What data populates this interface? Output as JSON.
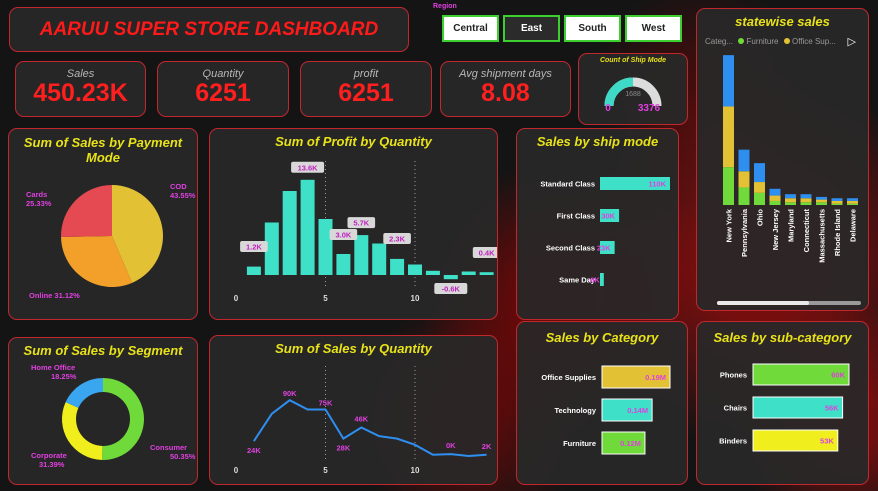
{
  "header": {
    "title": "AARUU SUPER STORE DASHBOARD"
  },
  "region_filter": {
    "label": "Region",
    "options": [
      "Central",
      "East",
      "South",
      "West"
    ],
    "selected": "East"
  },
  "kpis": [
    {
      "label": "Sales",
      "value": "450.23K"
    },
    {
      "label": "Quantity",
      "value": "6251"
    },
    {
      "label": "profit",
      "value": "6251"
    },
    {
      "label": "Avg shipment days",
      "value": "8.08"
    }
  ],
  "gauge": {
    "title": "Count of Ship Mode",
    "min": "0",
    "max": "3376",
    "center": "1688",
    "value_fraction": 0.5,
    "accent": "#3fd9c8"
  },
  "payment": {
    "title": "Sum of Sales by Payment Mode",
    "slices": [
      {
        "name": "COD",
        "pct": "43.55%",
        "value": 43.55,
        "color": "#e2c234"
      },
      {
        "name": "Online",
        "pct": "31.12%",
        "value": 31.12,
        "color": "#f2a02a"
      },
      {
        "name": "Cards",
        "pct": "25.33%",
        "value": 25.33,
        "color": "#e54952"
      }
    ]
  },
  "segment": {
    "title": "Sum of Sales by Segment",
    "slices": [
      {
        "name": "Consumer",
        "pct": "50.35%",
        "value": 50.35,
        "color": "#6fda3a"
      },
      {
        "name": "Corporate",
        "pct": "31.39%",
        "value": 31.39,
        "color": "#f0ee1c"
      },
      {
        "name": "Home Office",
        "pct": "18.25%",
        "value": 18.25,
        "color": "#3aa6f0"
      }
    ]
  },
  "statewise": {
    "title": "statewise sales",
    "legend": [
      {
        "label": "Categ...",
        "color": ""
      },
      {
        "label": "Furniture",
        "color": "#6fda3a"
      },
      {
        "label": "Office Sup...",
        "color": "#e2c234"
      }
    ]
  },
  "chart_data": [
    {
      "type": "bar",
      "title": "Sum of Profit by Quantity",
      "x": [
        1,
        2,
        3,
        4,
        5,
        6,
        7,
        8,
        9,
        10,
        11,
        12,
        13,
        14
      ],
      "values": [
        1.2,
        7.5,
        12.0,
        13.6,
        8.0,
        3.0,
        5.7,
        4.5,
        2.3,
        1.5,
        0.6,
        -0.6,
        0.5,
        0.4
      ],
      "data_labels": [
        {
          "x": 1,
          "text": "1.2K"
        },
        {
          "x": 4,
          "text": "13.6K"
        },
        {
          "x": 6,
          "text": "3.0K"
        },
        {
          "x": 7,
          "text": "5.7K"
        },
        {
          "x": 9,
          "text": "2.3K"
        },
        {
          "x": 12,
          "text": "-0.6K"
        },
        {
          "x": 14,
          "text": "0.4K"
        }
      ],
      "xticks": [
        0,
        5,
        10
      ],
      "color": "#3fe0c8"
    },
    {
      "type": "line",
      "title": "Sum of Sales by Quantity",
      "x": [
        1,
        2,
        3,
        4,
        5,
        6,
        7,
        8,
        9,
        10,
        11,
        12,
        13,
        14
      ],
      "values": [
        24,
        68,
        90,
        75,
        75,
        28,
        46,
        32,
        28,
        18,
        2,
        3,
        0,
        2
      ],
      "data_labels": [
        {
          "x": 1,
          "text": "24K"
        },
        {
          "x": 3,
          "text": "90K"
        },
        {
          "x": 5,
          "text": "75K"
        },
        {
          "x": 6,
          "text": "28K"
        },
        {
          "x": 7,
          "text": "46K"
        },
        {
          "x": 12,
          "text": "0K"
        },
        {
          "x": 14,
          "text": "2K"
        }
      ],
      "xticks": [
        0,
        5,
        10
      ],
      "color": "#2e8ff0"
    },
    {
      "type": "bar",
      "title": "Sales by ship mode",
      "orientation": "horizontal",
      "categories": [
        "Standard Class",
        "First Class",
        "Second Class",
        "Same Day"
      ],
      "values": [
        110,
        30,
        23,
        6
      ],
      "labels": [
        "110K",
        "30K",
        "23K",
        "6K"
      ],
      "color": "#3fe0c8"
    },
    {
      "type": "bar",
      "title": "Sales by Category",
      "orientation": "horizontal",
      "categories": [
        "Office Supplies",
        "Technology",
        "Furniture"
      ],
      "values": [
        0.19,
        0.14,
        0.12
      ],
      "labels": [
        "0.19M",
        "0.14M",
        "0.12M"
      ],
      "colors": [
        "#e2c234",
        "#3fe0c8",
        "#6fda3a"
      ]
    },
    {
      "type": "bar",
      "title": "Sales by sub-category",
      "orientation": "horizontal",
      "categories": [
        "Phones",
        "Chairs",
        "Binders"
      ],
      "values": [
        60,
        56,
        53
      ],
      "labels": [
        "60K",
        "56K",
        "53K"
      ],
      "colors": [
        "#6fda3a",
        "#3fe0c8",
        "#f0ee1c"
      ]
    },
    {
      "type": "bar",
      "title": "statewise sales",
      "stacked": true,
      "categories": [
        "New York",
        "Pennsylvania",
        "Ohio",
        "New Jersey",
        "Maryland",
        "Connecticut",
        "Massachusetts",
        "Rhode Island",
        "Delaware"
      ],
      "series": [
        {
          "name": "Furniture",
          "values": [
            28,
            13,
            9,
            3,
            2,
            2,
            2,
            1,
            1
          ],
          "color": "#6fda3a"
        },
        {
          "name": "Office Sup...",
          "values": [
            45,
            12,
            8,
            4,
            3,
            3,
            2,
            2,
            2
          ],
          "color": "#e2c234"
        },
        {
          "name": "Technology",
          "values": [
            38,
            16,
            14,
            5,
            3,
            3,
            2,
            2,
            2
          ],
          "color": "#2e8ff0"
        }
      ]
    }
  ]
}
